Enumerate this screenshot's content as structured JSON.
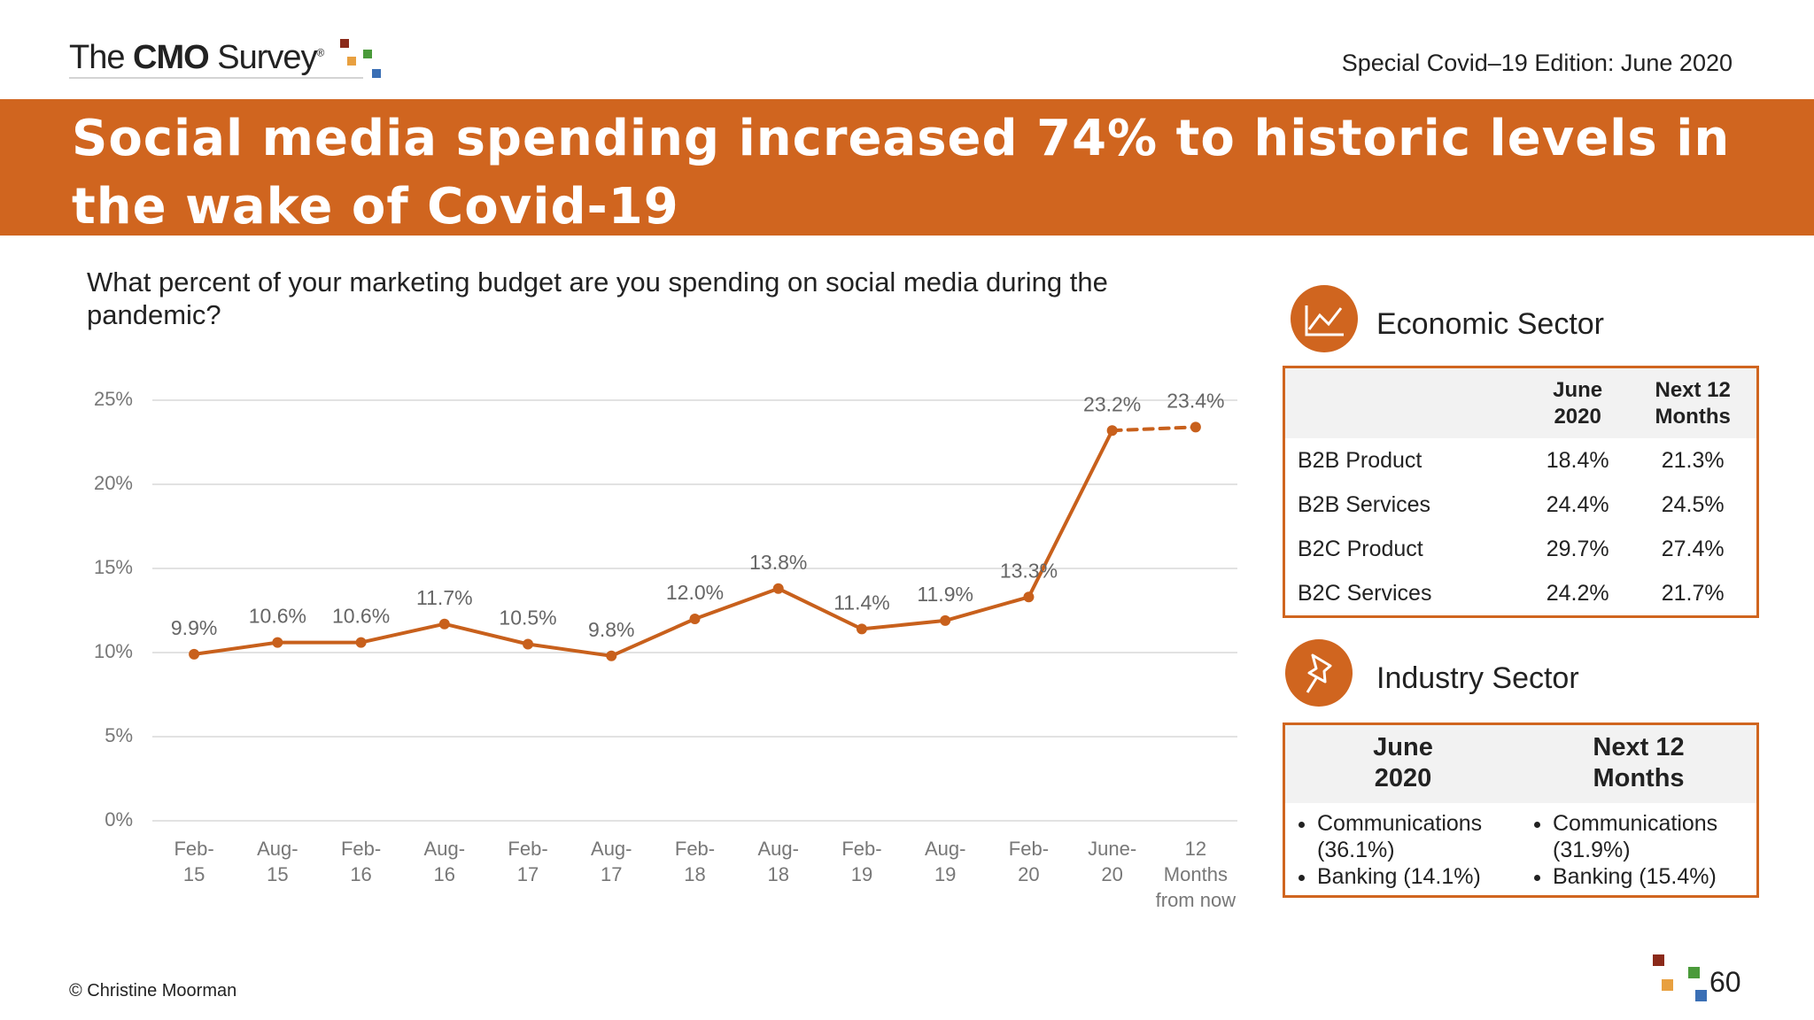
{
  "header": {
    "logo": [
      "The",
      "CMO",
      "Survey",
      "®"
    ],
    "edition": "Special Covid–19 Edition: June 2020",
    "title": "Social media spending increased 74% to historic levels in the wake of Covid-19"
  },
  "question": "What percent of your marketing budget are you spending on social media during the pandemic?",
  "chart_data": {
    "type": "line",
    "categories": [
      "Feb-\n15",
      "Aug-\n15",
      "Feb-\n16",
      "Aug-\n16",
      "Feb-\n17",
      "Aug-\n17",
      "Feb-\n18",
      "Aug-\n18",
      "Feb-\n19",
      "Aug-\n19",
      "Feb-\n20",
      "June-\n20",
      "12\nMonths\nfrom now"
    ],
    "values": [
      9.9,
      10.6,
      10.6,
      11.7,
      10.5,
      9.8,
      12.0,
      13.8,
      11.4,
      11.9,
      13.3,
      23.2,
      23.4
    ],
    "value_labels": [
      "9.9%",
      "10.6%",
      "10.6%",
      "11.7%",
      "10.5%",
      "9.8%",
      "12.0%",
      "13.8%",
      "11.4%",
      "11.9%",
      "13.3%",
      "23.2%",
      "23.4%"
    ],
    "color": "#c8601c",
    "last_segment_style": "dashed",
    "ylim": [
      0,
      25
    ],
    "yticks": [
      {
        "value": 0,
        "label": "0%"
      },
      {
        "value": 5,
        "label": "5%"
      },
      {
        "value": 10,
        "label": "10%"
      },
      {
        "value": 15,
        "label": "15%"
      },
      {
        "value": 20,
        "label": "20%"
      },
      {
        "value": 25,
        "label": "25%"
      }
    ],
    "grid": true
  },
  "economic_sector": {
    "title": "Economic Sector",
    "columns": [
      "June\n2020",
      "Next 12\nMonths"
    ],
    "rows": [
      [
        "B2B Product",
        "18.4%",
        "21.3%"
      ],
      [
        "B2B Services",
        "24.4%",
        "24.5%"
      ],
      [
        "B2C Product",
        "29.7%",
        "27.4%"
      ],
      [
        "B2C Services",
        "24.2%",
        "21.7%"
      ]
    ]
  },
  "industry_sector": {
    "title": "Industry Sector",
    "columns": [
      "June\n2020",
      "Next 12\nMonths"
    ],
    "items": [
      [
        "Communications (36.1%)",
        "Banking (14.1%)"
      ],
      [
        "Communications (31.9%)",
        "Banking (15.4%)"
      ]
    ]
  },
  "footer": {
    "copyright": "© Christine Moorman",
    "page": "60"
  }
}
